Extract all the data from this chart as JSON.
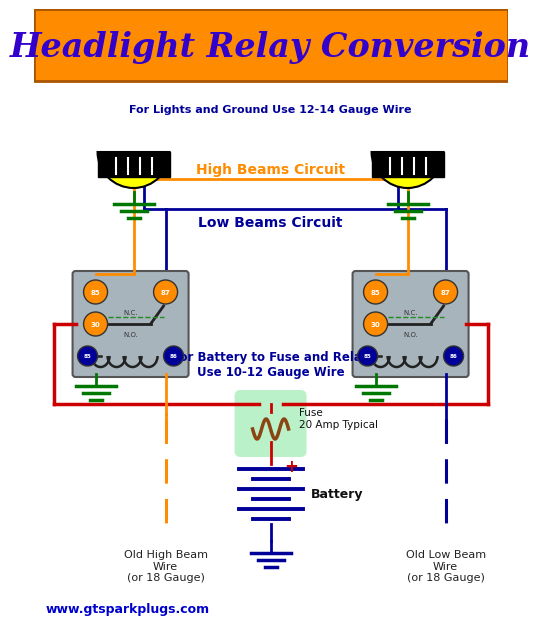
{
  "title": "Headlight Relay Conversion",
  "title_color": "#3300CC",
  "title_bg_color": "#FF8C00",
  "bg_color": "#FFFFFF",
  "url_text": "www.gtsparkplugs.com",
  "url_color": "#0000CC",
  "note1": "For Lights and Ground Use 12-14 Gauge Wire",
  "note1_color": "#000099",
  "note2": "For Battery to Fuse and Relay\nUse 10-12 Gauge Wire",
  "note2_color": "#000099",
  "high_beams_label": "High Beams Circuit",
  "high_beams_color": "#FF8C00",
  "low_beams_label": "Low Beams Circuit",
  "low_beams_color": "#000099",
  "fuse_label": "Fuse\n20 Amp Typical",
  "battery_label": "Battery",
  "old_high_beam_label": "Old High Beam\nWire\n(or 18 Gauge)",
  "old_low_beam_label": "Old Low Beam\nWire\n(or 18 Gauge)",
  "relay_bg": "#A8B4BC",
  "orange_wire": "#FF8C00",
  "blue_wire": "#000099",
  "red_wire": "#CC0000",
  "green_wire": "#007700",
  "brown_wire": "#8B4513",
  "lw": 2.0
}
